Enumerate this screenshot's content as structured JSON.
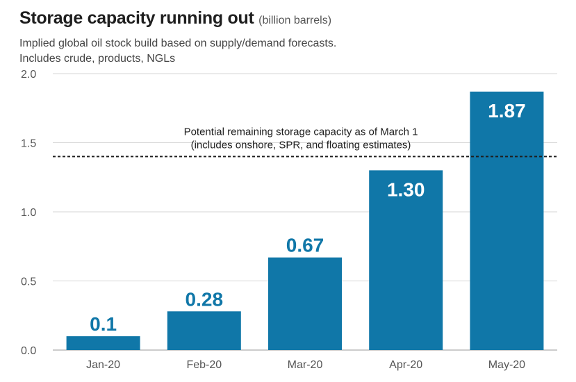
{
  "header": {
    "title": "Storage capacity running out",
    "title_unit": "(billion barrels)",
    "subtitle_line1": "Implied global oil stock build based on supply/demand forecasts.",
    "subtitle_line2": "Includes crude, products, NGLs"
  },
  "chart_data": {
    "type": "bar",
    "categories": [
      "Jan-20",
      "Feb-20",
      "Mar-20",
      "Apr-20",
      "May-20"
    ],
    "values": [
      0.1,
      0.28,
      0.67,
      1.3,
      1.87
    ],
    "value_labels": [
      "0.1",
      "0.28",
      "0.67",
      "1.30",
      "1.87"
    ],
    "ylim": [
      0,
      2.0
    ],
    "yticks": [
      0,
      0.5,
      1.0,
      1.5,
      2.0
    ],
    "ytick_labels": [
      "0.0",
      "0.5",
      "1.0",
      "1.5",
      "2.0"
    ],
    "grid": true,
    "bar_color": "#1077a8",
    "label_outside_color": "#1077a8",
    "label_inside_color": "#ffffff",
    "reference_line": {
      "value": 1.4,
      "style": "dashed",
      "label_line1": "Potential remaining storage capacity as of March 1",
      "label_line2": "(includes onshore, SPR, and floating estimates)"
    }
  }
}
